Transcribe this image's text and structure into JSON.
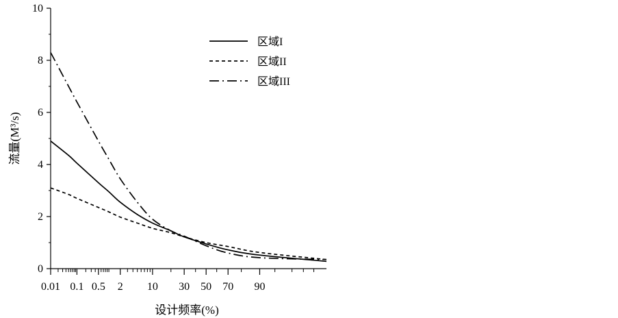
{
  "chart_data": {
    "type": "line",
    "xlabel": "设计频率(%)",
    "ylabel": "流量(M³/s)",
    "x_scale": "normal-probability",
    "x_ticks": [
      "0.01",
      "0.1",
      "0.5",
      "2",
      "10",
      "30",
      "50",
      "70",
      "90"
    ],
    "x_tick_values": [
      0.01,
      0.1,
      0.5,
      2,
      10,
      30,
      50,
      70,
      90
    ],
    "xlim": [
      0.01,
      99.8
    ],
    "ylim": [
      0,
      10
    ],
    "y_ticks": [
      "0",
      "2",
      "4",
      "6",
      "8",
      "10"
    ],
    "legend_position": "top-right",
    "series": [
      {
        "name": "区域I",
        "line_style": "solid",
        "x": [
          0.01,
          0.05,
          0.1,
          0.5,
          1,
          2,
          5,
          10,
          20,
          30,
          50,
          70,
          90,
          99.8
        ],
        "y": [
          4.9,
          4.35,
          4.05,
          3.3,
          2.95,
          2.55,
          2.08,
          1.75,
          1.45,
          1.22,
          0.95,
          0.72,
          0.52,
          0.28
        ]
      },
      {
        "name": "区域II",
        "line_style": "dashed",
        "x": [
          0.01,
          0.05,
          0.1,
          0.5,
          1,
          2,
          5,
          10,
          20,
          30,
          50,
          70,
          90,
          99.8
        ],
        "y": [
          3.1,
          2.85,
          2.7,
          2.35,
          2.18,
          1.98,
          1.75,
          1.55,
          1.38,
          1.22,
          1.0,
          0.85,
          0.62,
          0.35
        ]
      },
      {
        "name": "区域III",
        "line_style": "dash-dot",
        "x": [
          0.01,
          0.05,
          0.1,
          0.5,
          1,
          2,
          5,
          10,
          20,
          30,
          50,
          70,
          90,
          99.8
        ],
        "y": [
          8.3,
          7.0,
          6.4,
          4.9,
          4.2,
          3.45,
          2.55,
          1.9,
          1.45,
          1.25,
          0.88,
          0.6,
          0.42,
          0.35
        ]
      }
    ]
  }
}
